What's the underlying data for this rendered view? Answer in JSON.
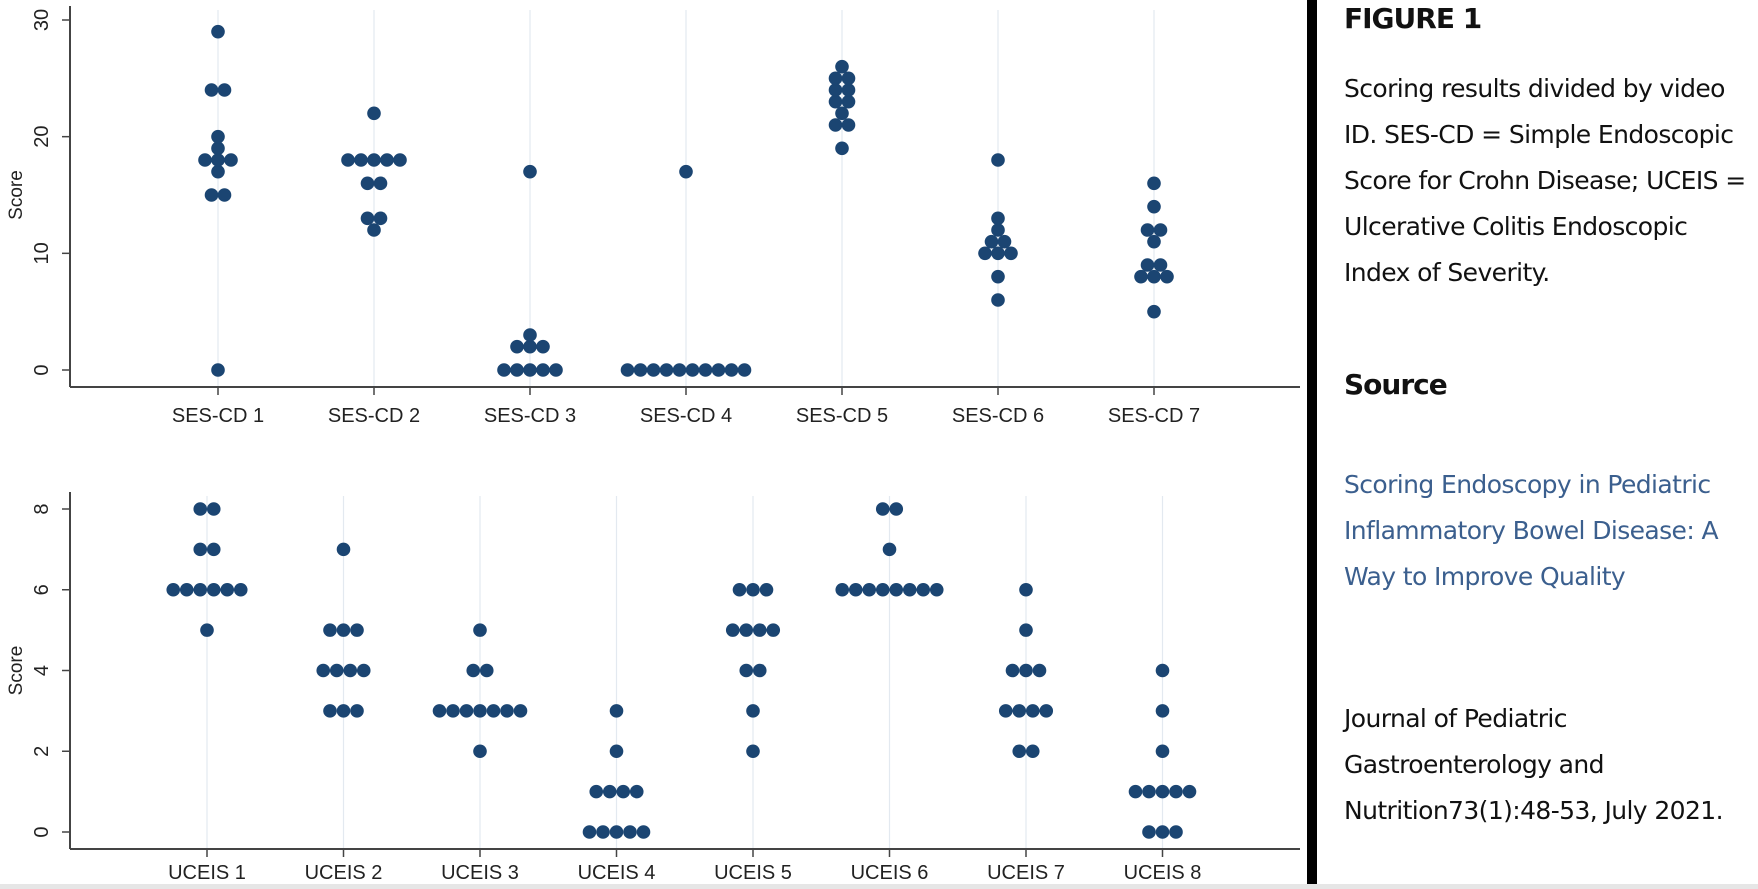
{
  "colors": {
    "dot": "#1b4572",
    "grid": "#e3e9f0",
    "axis": "#444444",
    "link": "#3b5f8e"
  },
  "panel": {
    "figure_title": "FIGURE 1",
    "caption": "Scoring results divided by video ID. SES-CD = Simple Endoscopic Score for Crohn Disease; UCEIS = Ulcerative Colitis Endoscopic Index of Severity.",
    "source_title": "Source",
    "source_link": "Scoring Endoscopy in Pediatric Inflammatory Bowel Disease: A Way to Improve Quality",
    "journal": "Journal of Pediatric Gastroenterology and Nutrition73(1):48-53, July 2021."
  },
  "chart_data": [
    {
      "type": "scatter",
      "subtype": "dot-plot",
      "title": "",
      "xlabel": "",
      "ylabel": "Score",
      "ylim": [
        0,
        30
      ],
      "yticks": [
        "0",
        "10",
        "20",
        "30"
      ],
      "ytick_values": [
        0,
        10,
        20,
        30
      ],
      "categories": [
        "SES-CD 1",
        "SES-CD 2",
        "SES-CD 3",
        "SES-CD 4",
        "SES-CD 5",
        "SES-CD 6",
        "SES-CD 7"
      ],
      "values": [
        [
          29,
          24,
          24,
          20,
          19,
          18,
          18,
          18,
          17,
          15,
          15,
          0
        ],
        [
          22,
          18,
          18,
          18,
          18,
          18,
          16,
          16,
          13,
          13,
          12
        ],
        [
          17,
          3,
          2,
          2,
          2,
          0,
          0,
          0,
          0,
          0
        ],
        [
          17,
          0,
          0,
          0,
          0,
          0,
          0,
          0,
          0,
          0,
          0
        ],
        [
          26,
          25,
          25,
          24,
          24,
          23,
          23,
          22,
          21,
          21,
          19
        ],
        [
          18,
          13,
          12,
          11,
          11,
          10,
          10,
          10,
          8,
          6
        ],
        [
          16,
          14,
          12,
          12,
          11,
          9,
          9,
          8,
          8,
          8,
          5
        ]
      ],
      "grid": "vertical"
    },
    {
      "type": "scatter",
      "subtype": "dot-plot",
      "title": "",
      "xlabel": "",
      "ylabel": "Score",
      "ylim": [
        0,
        8
      ],
      "yticks": [
        "0",
        "2",
        "4",
        "6",
        "8"
      ],
      "ytick_values": [
        0,
        2,
        4,
        6,
        8
      ],
      "categories": [
        "UCEIS 1",
        "UCEIS 2",
        "UCEIS 3",
        "UCEIS 4",
        "UCEIS 5",
        "UCEIS 6",
        "UCEIS 7",
        "UCEIS 8"
      ],
      "values": [
        [
          8,
          8,
          7,
          7,
          6,
          6,
          6,
          6,
          6,
          6,
          5
        ],
        [
          7,
          5,
          5,
          5,
          4,
          4,
          4,
          4,
          3,
          3,
          3
        ],
        [
          5,
          4,
          4,
          3,
          3,
          3,
          3,
          3,
          3,
          3,
          2
        ],
        [
          3,
          2,
          1,
          1,
          1,
          1,
          0,
          0,
          0,
          0,
          0
        ],
        [
          6,
          6,
          6,
          5,
          5,
          5,
          5,
          4,
          4,
          3,
          2
        ],
        [
          8,
          8,
          7,
          6,
          6,
          6,
          6,
          6,
          6,
          6,
          6
        ],
        [
          6,
          5,
          4,
          4,
          4,
          3,
          3,
          3,
          3,
          2,
          2
        ],
        [
          4,
          3,
          2,
          1,
          1,
          1,
          1,
          1,
          0,
          0,
          0
        ]
      ],
      "grid": "vertical"
    }
  ]
}
